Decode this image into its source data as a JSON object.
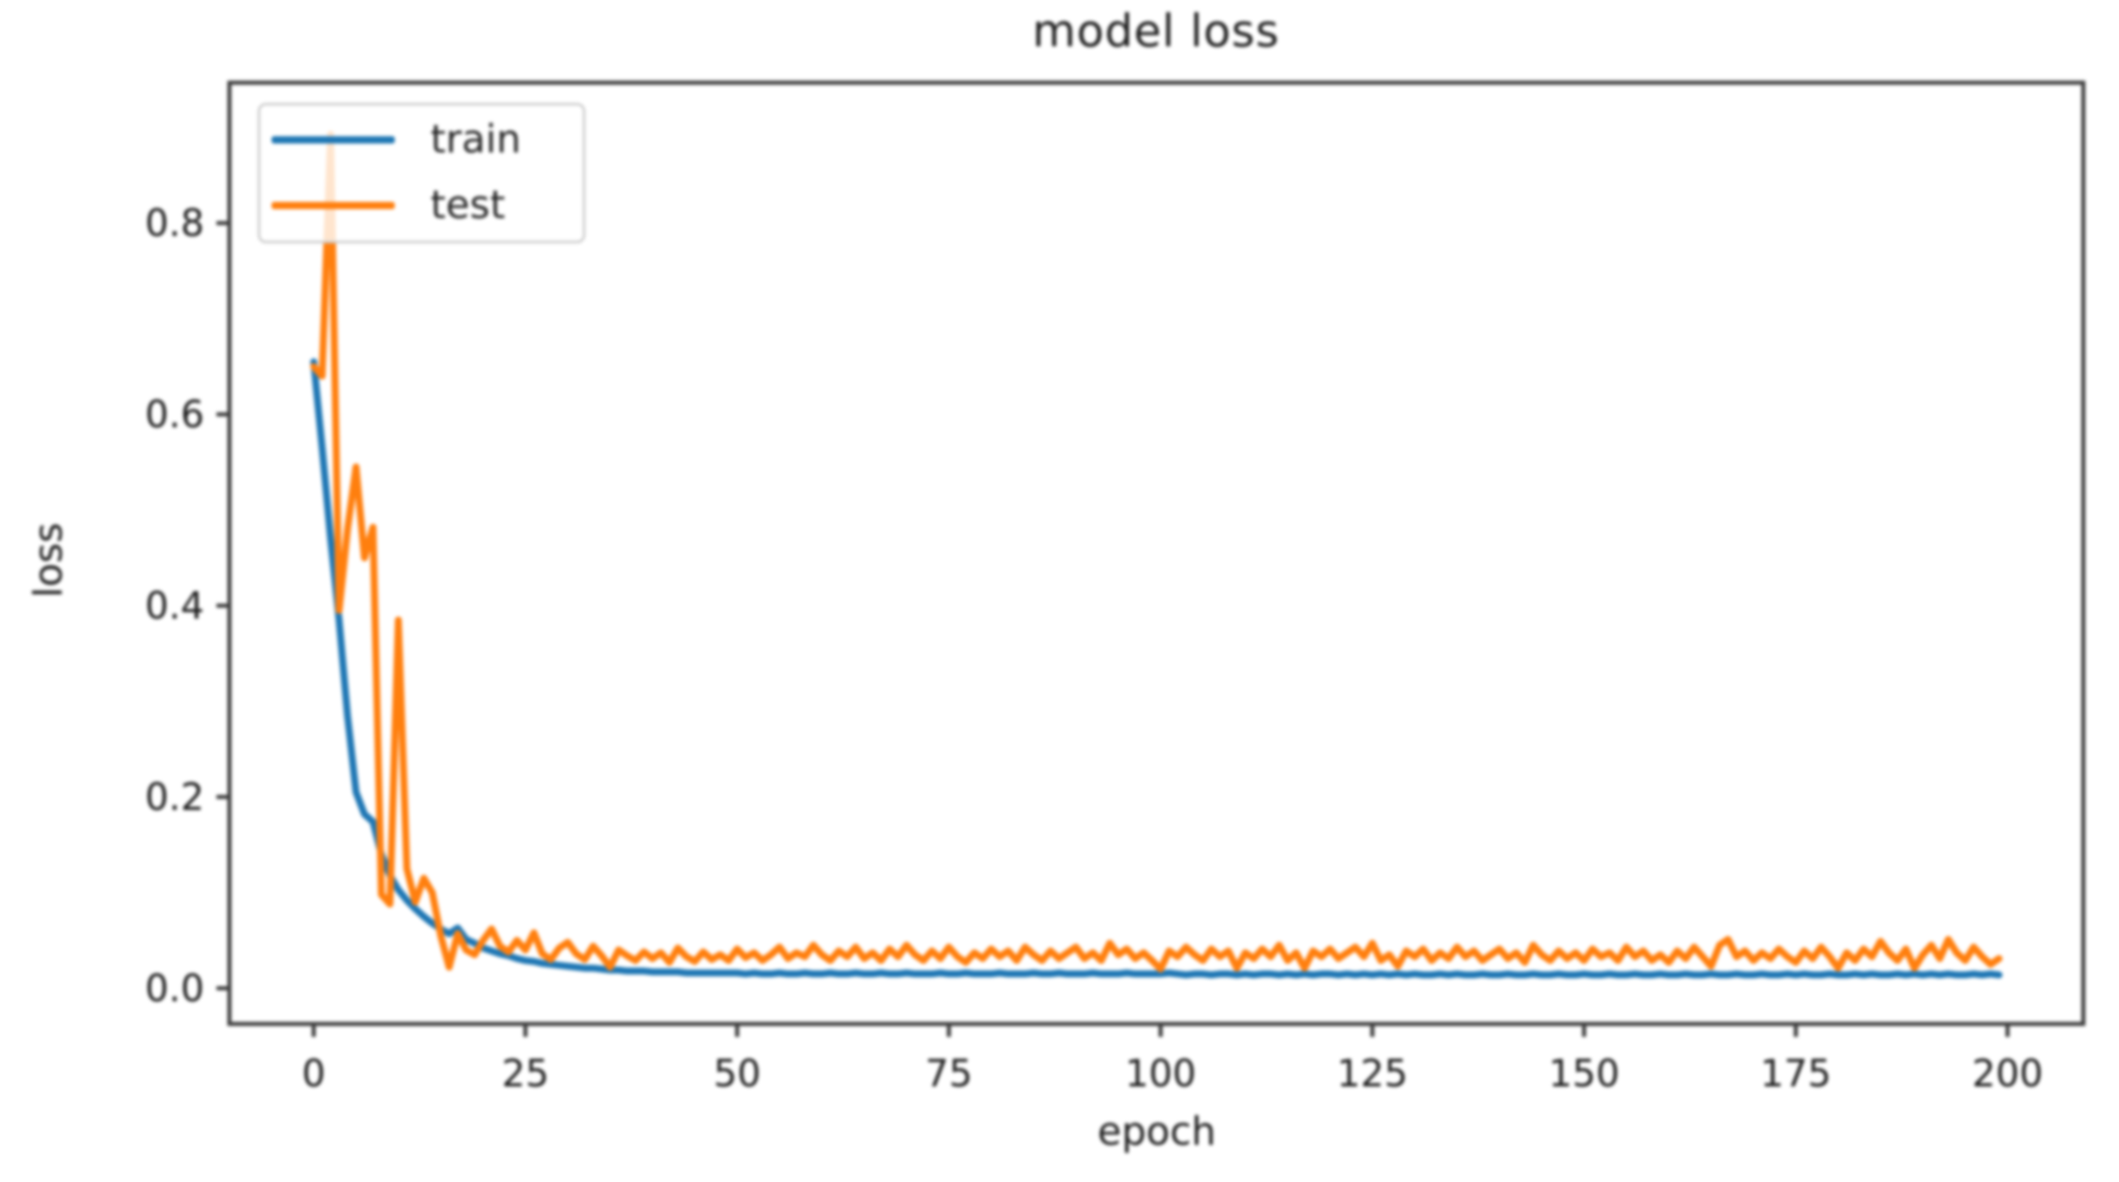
{
  "figure": {
    "background": "#ffffff",
    "text_color": "#1c1c1c",
    "spine_color": "#3d3d3d"
  },
  "chart_data": {
    "type": "line",
    "title": "model loss",
    "xlabel": "epoch",
    "ylabel": "loss",
    "x_ticks": [
      0,
      25,
      50,
      75,
      100,
      125,
      150,
      175,
      200
    ],
    "y_ticks": [
      0.0,
      0.2,
      0.4,
      0.6,
      0.8
    ],
    "xlim": [
      -9.95,
      208.95
    ],
    "ylim": [
      -0.0373,
      0.9468
    ],
    "grid": false,
    "legend": {
      "position": "upper left",
      "entries": [
        "train",
        "test"
      ]
    },
    "x_start": 0,
    "x_step": 1,
    "series": [
      {
        "name": "train",
        "color": "#1f77b4",
        "values": [
          0.655,
          0.565,
          0.47,
          0.385,
          0.285,
          0.205,
          0.182,
          0.174,
          0.14,
          0.118,
          0.103,
          0.092,
          0.083,
          0.075,
          0.068,
          0.062,
          0.057,
          0.063,
          0.051,
          0.047,
          0.042,
          0.039,
          0.036,
          0.034,
          0.031,
          0.029,
          0.028,
          0.026,
          0.025,
          0.024,
          0.023,
          0.022,
          0.021,
          0.021,
          0.02,
          0.019,
          0.019,
          0.018,
          0.018,
          0.018,
          0.017,
          0.017,
          0.017,
          0.017,
          0.016,
          0.016,
          0.016,
          0.016,
          0.016,
          0.016,
          0.016,
          0.015,
          0.016,
          0.015,
          0.015,
          0.016,
          0.015,
          0.015,
          0.016,
          0.015,
          0.015,
          0.016,
          0.015,
          0.015,
          0.016,
          0.015,
          0.015,
          0.016,
          0.015,
          0.015,
          0.016,
          0.015,
          0.015,
          0.015,
          0.016,
          0.015,
          0.015,
          0.016,
          0.015,
          0.015,
          0.015,
          0.016,
          0.015,
          0.015,
          0.015,
          0.016,
          0.015,
          0.015,
          0.016,
          0.015,
          0.015,
          0.015,
          0.016,
          0.015,
          0.015,
          0.015,
          0.016,
          0.015,
          0.015,
          0.015,
          0.015,
          0.016,
          0.015,
          0.014,
          0.015,
          0.015,
          0.014,
          0.015,
          0.015,
          0.014,
          0.015,
          0.014,
          0.015,
          0.015,
          0.014,
          0.015,
          0.014,
          0.015,
          0.014,
          0.015,
          0.015,
          0.014,
          0.015,
          0.014,
          0.015,
          0.014,
          0.015,
          0.014,
          0.015,
          0.014,
          0.015,
          0.014,
          0.014,
          0.015,
          0.014,
          0.015,
          0.014,
          0.014,
          0.015,
          0.014,
          0.014,
          0.015,
          0.014,
          0.014,
          0.015,
          0.014,
          0.014,
          0.015,
          0.014,
          0.014,
          0.015,
          0.014,
          0.014,
          0.015,
          0.014,
          0.014,
          0.015,
          0.014,
          0.014,
          0.015,
          0.014,
          0.014,
          0.015,
          0.014,
          0.014,
          0.015,
          0.014,
          0.014,
          0.015,
          0.014,
          0.014,
          0.015,
          0.014,
          0.014,
          0.015,
          0.014,
          0.015,
          0.014,
          0.014,
          0.015,
          0.014,
          0.014,
          0.015,
          0.014,
          0.015,
          0.014,
          0.014,
          0.015,
          0.014,
          0.015,
          0.014,
          0.015,
          0.014,
          0.015,
          0.014,
          0.014,
          0.015,
          0.014,
          0.015,
          0.014
        ]
      },
      {
        "name": "test",
        "color": "#ff7f0e",
        "values": [
          0.65,
          0.64,
          0.893,
          0.395,
          0.48,
          0.545,
          0.45,
          0.482,
          0.098,
          0.088,
          0.385,
          0.125,
          0.09,
          0.115,
          0.1,
          0.055,
          0.022,
          0.057,
          0.04,
          0.035,
          0.05,
          0.062,
          0.044,
          0.038,
          0.05,
          0.04,
          0.058,
          0.036,
          0.03,
          0.042,
          0.048,
          0.036,
          0.03,
          0.044,
          0.034,
          0.022,
          0.04,
          0.034,
          0.029,
          0.038,
          0.031,
          0.037,
          0.027,
          0.042,
          0.033,
          0.028,
          0.038,
          0.03,
          0.035,
          0.029,
          0.041,
          0.032,
          0.037,
          0.029,
          0.035,
          0.043,
          0.031,
          0.037,
          0.033,
          0.045,
          0.035,
          0.029,
          0.039,
          0.033,
          0.043,
          0.031,
          0.037,
          0.029,
          0.041,
          0.033,
          0.045,
          0.035,
          0.029,
          0.039,
          0.031,
          0.043,
          0.033,
          0.027,
          0.037,
          0.031,
          0.041,
          0.033,
          0.039,
          0.029,
          0.043,
          0.035,
          0.029,
          0.039,
          0.031,
          0.037,
          0.043,
          0.031,
          0.037,
          0.029,
          0.047,
          0.035,
          0.041,
          0.031,
          0.037,
          0.029,
          0.02,
          0.039,
          0.033,
          0.043,
          0.035,
          0.029,
          0.041,
          0.033,
          0.039,
          0.021,
          0.037,
          0.031,
          0.041,
          0.033,
          0.045,
          0.029,
          0.037,
          0.021,
          0.039,
          0.033,
          0.041,
          0.031,
          0.037,
          0.043,
          0.033,
          0.047,
          0.029,
          0.035,
          0.023,
          0.039,
          0.033,
          0.041,
          0.029,
          0.037,
          0.031,
          0.043,
          0.033,
          0.039,
          0.029,
          0.035,
          0.041,
          0.031,
          0.037,
          0.027,
          0.045,
          0.035,
          0.029,
          0.039,
          0.031,
          0.037,
          0.029,
          0.041,
          0.033,
          0.037,
          0.029,
          0.043,
          0.033,
          0.039,
          0.029,
          0.035,
          0.027,
          0.039,
          0.031,
          0.043,
          0.033,
          0.023,
          0.045,
          0.051,
          0.033,
          0.039,
          0.029,
          0.037,
          0.031,
          0.041,
          0.033,
          0.027,
          0.039,
          0.031,
          0.043,
          0.033,
          0.021,
          0.037,
          0.029,
          0.041,
          0.033,
          0.049,
          0.037,
          0.029,
          0.041,
          0.021,
          0.035,
          0.045,
          0.031,
          0.051,
          0.037,
          0.029,
          0.043,
          0.033,
          0.025,
          0.031
        ]
      }
    ]
  }
}
